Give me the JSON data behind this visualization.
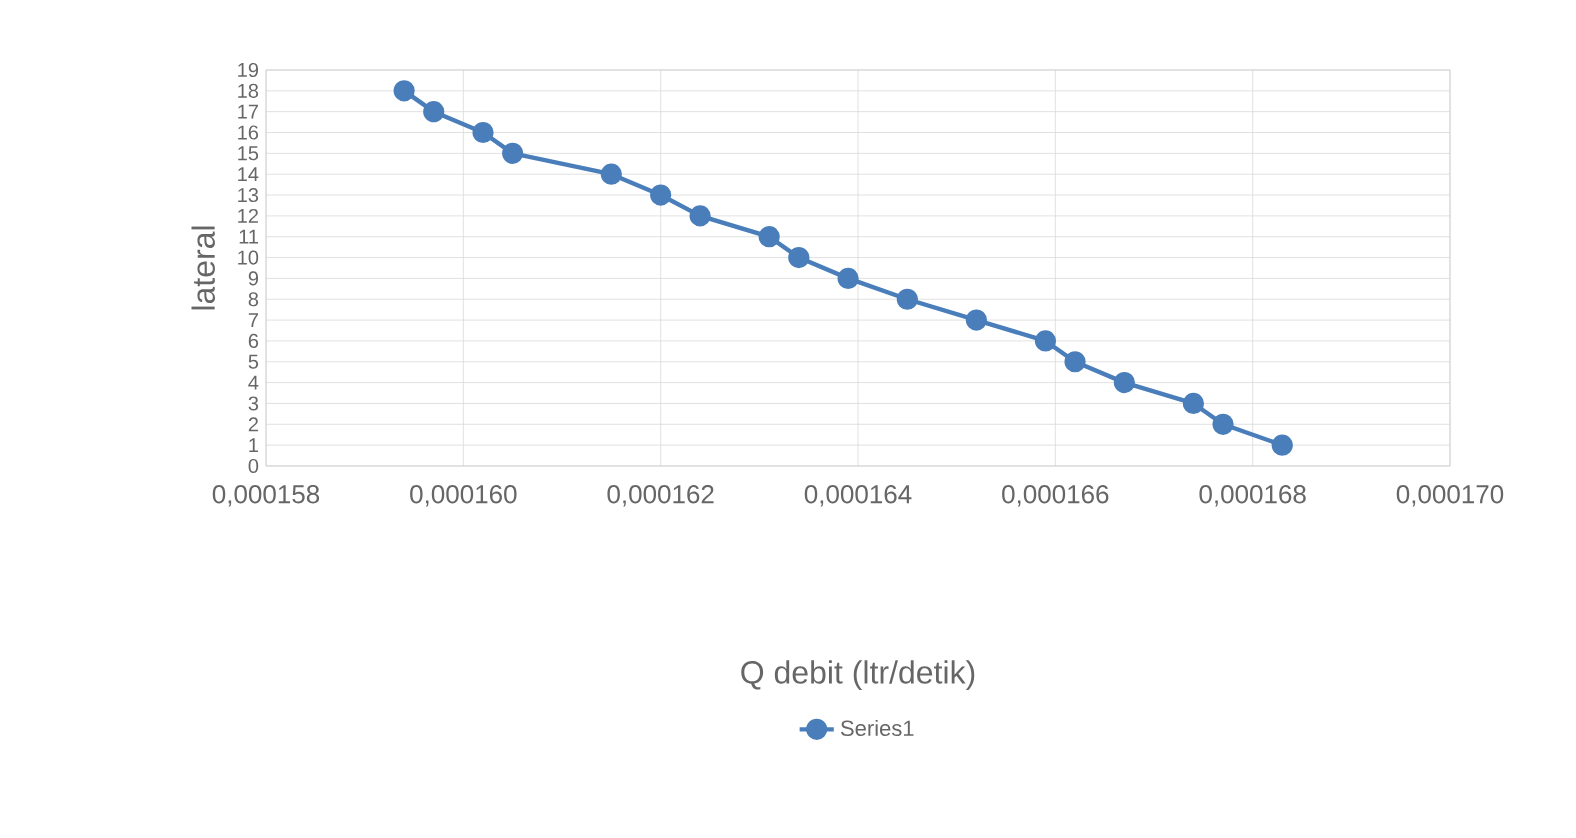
{
  "chart_data": {
    "type": "line",
    "xlabel": "Q debit (ltr/detik)",
    "ylabel": "lateral",
    "series": [
      {
        "name": "Series1",
        "color": "#4a7ebb",
        "x": [
          0.0001683,
          0.0001677,
          0.0001674,
          0.0001667,
          0.0001662,
          0.0001659,
          0.0001652,
          0.0001645,
          0.0001639,
          0.0001634,
          0.0001631,
          0.0001624,
          0.000162,
          0.0001615,
          0.0001605,
          0.0001602,
          0.0001597,
          0.0001594
        ],
        "values": [
          1,
          2,
          3,
          4,
          5,
          6,
          7,
          8,
          9,
          10,
          11,
          12,
          13,
          14,
          15,
          16,
          17,
          18
        ]
      }
    ],
    "xlim": [
      0.000158,
      0.00017
    ],
    "xticks": [
      {
        "value": 0.000158,
        "label": "0,000158"
      },
      {
        "value": 0.00016,
        "label": "0,000160"
      },
      {
        "value": 0.000162,
        "label": "0,000162"
      },
      {
        "value": 0.000164,
        "label": "0,000164"
      },
      {
        "value": 0.000166,
        "label": "0,000166"
      },
      {
        "value": 0.000168,
        "label": "0,000168"
      },
      {
        "value": 0.00017,
        "label": "0,000170"
      }
    ],
    "ylim": [
      0,
      19
    ],
    "yticks": [
      0,
      1,
      2,
      3,
      4,
      5,
      6,
      7,
      8,
      9,
      10,
      11,
      12,
      13,
      14,
      15,
      16,
      17,
      18,
      19
    ],
    "grid": true,
    "legend": "bottom",
    "marker": "circle",
    "line_style": "solid"
  }
}
